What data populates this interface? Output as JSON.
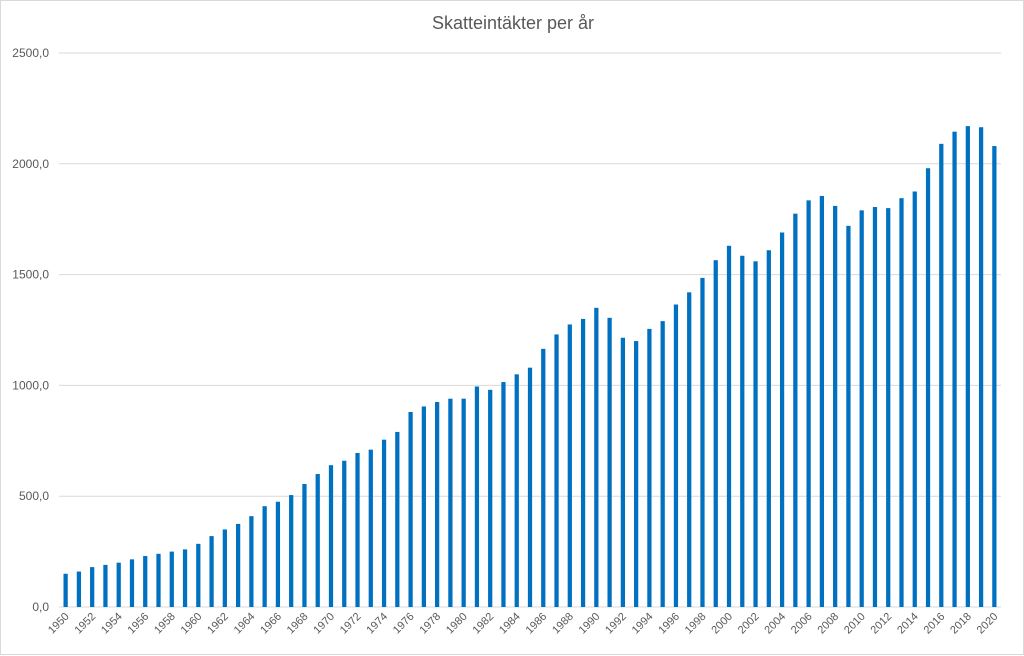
{
  "chart_data": {
    "type": "bar",
    "title": "Skatteintäkter per år",
    "xlabel": "",
    "ylabel": "",
    "ylim": [
      0,
      2500
    ],
    "yticks": [
      "0,0",
      "500,0",
      "1000,0",
      "1500,0",
      "2000,0",
      "2500,0"
    ],
    "grid": true,
    "legend": "none",
    "bar_color": "#0070c0",
    "grid_color": "#d9d9d9",
    "text_color": "#595959",
    "categories": [
      "1950",
      "1951",
      "1952",
      "1953",
      "1954",
      "1955",
      "1956",
      "1957",
      "1958",
      "1959",
      "1960",
      "1961",
      "1962",
      "1963",
      "1964",
      "1965",
      "1966",
      "1967",
      "1968",
      "1969",
      "1970",
      "1971",
      "1972",
      "1973",
      "1974",
      "1975",
      "1976",
      "1977",
      "1978",
      "1979",
      "1980",
      "1981",
      "1982",
      "1983",
      "1984",
      "1985",
      "1986",
      "1987",
      "1988",
      "1989",
      "1990",
      "1991",
      "1992",
      "1993",
      "1994",
      "1995",
      "1996",
      "1997",
      "1998",
      "1999",
      "2000",
      "2001",
      "2002",
      "2003",
      "2004",
      "2005",
      "2006",
      "2007",
      "2008",
      "2009",
      "2010",
      "2011",
      "2012",
      "2013",
      "2014",
      "2015",
      "2016",
      "2017",
      "2018",
      "2019",
      "2020"
    ],
    "visible_xtick_labels": [
      "1950",
      "1952",
      "1954",
      "1956",
      "1958",
      "1960",
      "1962",
      "1964",
      "1966",
      "1968",
      "1970",
      "1972",
      "1974",
      "1976",
      "1978",
      "1980",
      "1982",
      "1984",
      "1986",
      "1988",
      "1990",
      "1992",
      "1994",
      "1996",
      "1998",
      "2000",
      "2002",
      "2004",
      "2006",
      "2008",
      "2010",
      "2012",
      "2014",
      "2016",
      "2018",
      "2020"
    ],
    "values": [
      150,
      160,
      180,
      190,
      200,
      215,
      230,
      240,
      250,
      260,
      285,
      320,
      350,
      375,
      410,
      455,
      475,
      505,
      555,
      600,
      640,
      660,
      695,
      710,
      755,
      790,
      880,
      905,
      925,
      940,
      940,
      995,
      980,
      1015,
      1050,
      1080,
      1165,
      1230,
      1275,
      1300,
      1350,
      1305,
      1215,
      1200,
      1255,
      1290,
      1365,
      1420,
      1485,
      1565,
      1630,
      1585,
      1560,
      1610,
      1690,
      1775,
      1835,
      1855,
      1810,
      1720,
      1790,
      1805,
      1800,
      1845,
      1875,
      1980,
      2090,
      2145,
      2170,
      2165,
      2080
    ]
  }
}
